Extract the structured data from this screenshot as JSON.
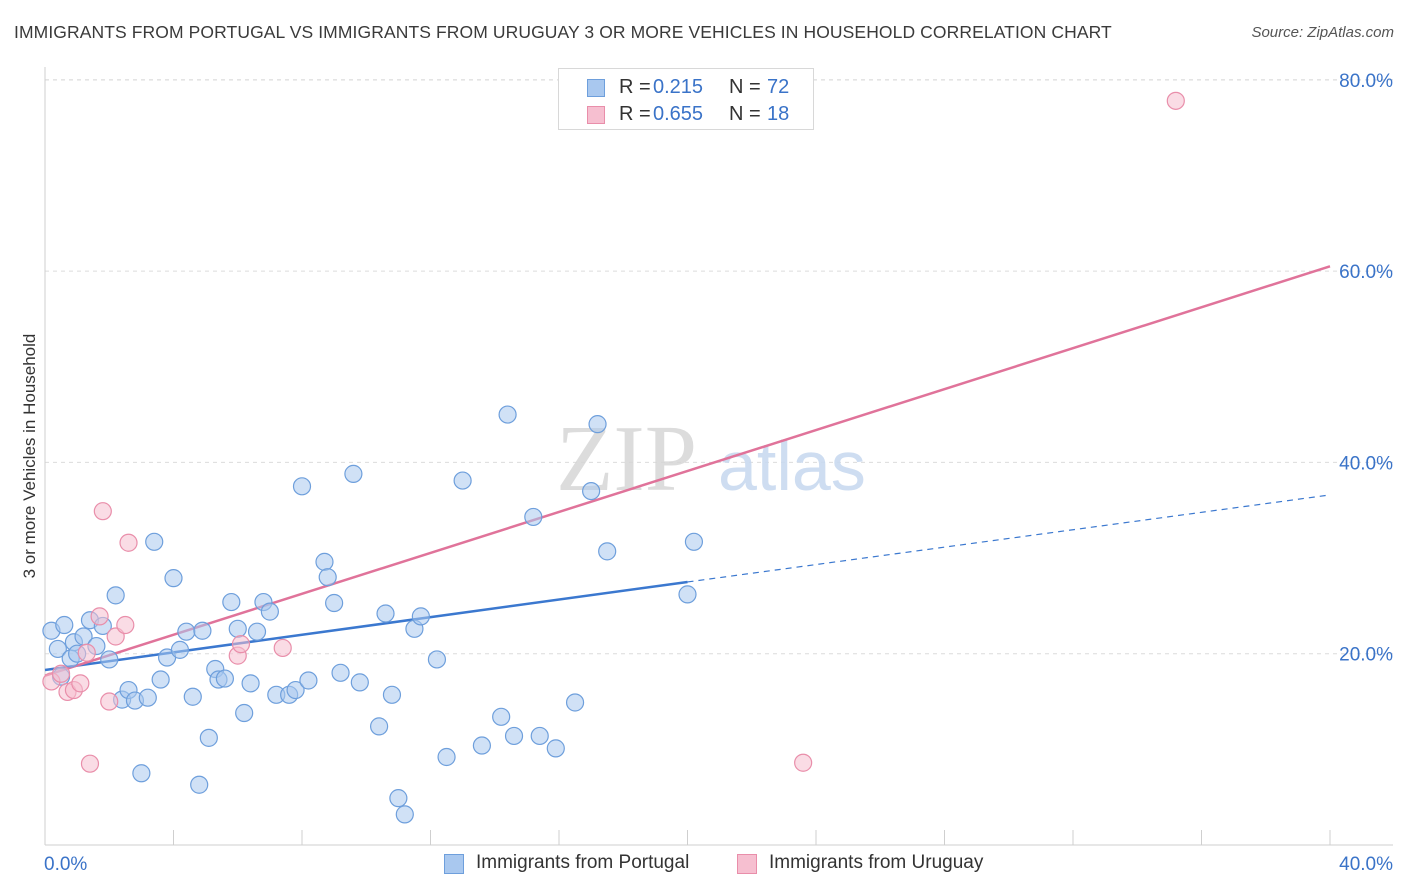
{
  "header": {
    "title": "IMMIGRANTS FROM PORTUGAL VS IMMIGRANTS FROM URUGUAY 3 OR MORE VEHICLES IN HOUSEHOLD CORRELATION CHART",
    "source": "Source: ZipAtlas.com"
  },
  "watermark": {
    "zip": "ZIP",
    "atlas": "atlas"
  },
  "legend_top": {
    "rows": [
      {
        "r_label": "R =",
        "r_value": "0.215",
        "n_label": "N =",
        "n_value": "72"
      },
      {
        "r_label": "R =",
        "r_value": "0.655",
        "n_label": "N =",
        "n_value": "18"
      }
    ]
  },
  "colors": {
    "portugal_fill": "#a9c8ef",
    "portugal_stroke": "#6e9fdc",
    "portugal_line": "#3b78cf",
    "uruguay_fill": "#f6bfd0",
    "uruguay_stroke": "#e98eaa",
    "uruguay_line": "#e0739a",
    "grid": "#dcdcdc",
    "tick_label": "#3a73c8"
  },
  "chart_data": {
    "type": "scatter",
    "title": "IMMIGRANTS FROM PORTUGAL VS IMMIGRANTS FROM URUGUAY 3 OR MORE VEHICLES IN HOUSEHOLD CORRELATION CHART",
    "xlabel": "",
    "ylabel": "3 or more Vehicles in Household",
    "xlim": [
      0,
      40
    ],
    "ylim": [
      0,
      80
    ],
    "x_tick_labels": [
      "0.0%",
      "40.0%"
    ],
    "y_ticks": [
      20,
      40,
      60,
      80
    ],
    "y_tick_labels": [
      "20.0%",
      "40.0%",
      "60.0%",
      "80.0%"
    ],
    "grid": true,
    "legend_position": "bottom",
    "series": [
      {
        "name": "Immigrants from Portugal",
        "R": 0.215,
        "N": 72,
        "trend": {
          "x_start": 0,
          "y_start": 18.3,
          "x_solid_end": 20,
          "y_solid_end": 27.5,
          "x_dash_end": 40,
          "y_dash_end": 36.6
        },
        "points": [
          [
            0.2,
            22.4
          ],
          [
            0.4,
            20.5
          ],
          [
            0.6,
            23.0
          ],
          [
            0.8,
            19.5
          ],
          [
            0.9,
            21.2
          ],
          [
            1.0,
            20.0
          ],
          [
            1.2,
            21.8
          ],
          [
            1.4,
            23.5
          ],
          [
            1.6,
            20.8
          ],
          [
            1.8,
            22.9
          ],
          [
            2.0,
            19.4
          ],
          [
            2.2,
            26.1
          ],
          [
            2.4,
            15.2
          ],
          [
            2.6,
            16.2
          ],
          [
            2.8,
            15.1
          ],
          [
            3.0,
            7.5
          ],
          [
            3.2,
            15.4
          ],
          [
            3.4,
            31.7
          ],
          [
            3.6,
            17.3
          ],
          [
            3.8,
            19.6
          ],
          [
            4.0,
            27.9
          ],
          [
            4.2,
            20.4
          ],
          [
            4.4,
            22.3
          ],
          [
            4.6,
            15.5
          ],
          [
            4.8,
            6.3
          ],
          [
            4.9,
            22.4
          ],
          [
            5.1,
            11.2
          ],
          [
            5.3,
            18.4
          ],
          [
            5.4,
            17.3
          ],
          [
            5.6,
            17.4
          ],
          [
            5.8,
            25.4
          ],
          [
            6.0,
            22.6
          ],
          [
            6.2,
            13.8
          ],
          [
            6.4,
            16.9
          ],
          [
            6.6,
            22.3
          ],
          [
            6.8,
            25.4
          ],
          [
            7.0,
            24.4
          ],
          [
            7.2,
            15.7
          ],
          [
            7.6,
            15.7
          ],
          [
            7.8,
            16.2
          ],
          [
            8.0,
            37.5
          ],
          [
            8.2,
            17.2
          ],
          [
            8.7,
            29.6
          ],
          [
            8.8,
            28.0
          ],
          [
            9.0,
            25.3
          ],
          [
            9.2,
            18.0
          ],
          [
            9.6,
            38.8
          ],
          [
            9.8,
            17.0
          ],
          [
            10.4,
            12.4
          ],
          [
            10.6,
            24.2
          ],
          [
            10.8,
            15.7
          ],
          [
            11.0,
            4.9
          ],
          [
            11.2,
            3.2
          ],
          [
            11.5,
            22.6
          ],
          [
            11.7,
            23.9
          ],
          [
            12.2,
            19.4
          ],
          [
            12.5,
            9.2
          ],
          [
            13.0,
            38.1
          ],
          [
            13.6,
            10.4
          ],
          [
            14.2,
            13.4
          ],
          [
            14.4,
            45.0
          ],
          [
            14.6,
            11.4
          ],
          [
            15.2,
            34.3
          ],
          [
            15.4,
            11.4
          ],
          [
            15.9,
            10.1
          ],
          [
            16.5,
            14.9
          ],
          [
            17.0,
            37.0
          ],
          [
            17.2,
            44.0
          ],
          [
            17.5,
            30.7
          ],
          [
            20.0,
            26.2
          ],
          [
            20.2,
            31.7
          ],
          [
            0.5,
            17.6
          ]
        ]
      },
      {
        "name": "Immigrants from Uruguay",
        "R": 0.655,
        "N": 18,
        "trend": {
          "x_start": 0,
          "y_start": 17.7,
          "x_end": 40,
          "y_end": 60.5
        },
        "points": [
          [
            0.2,
            17.1
          ],
          [
            0.5,
            17.9
          ],
          [
            0.7,
            16.0
          ],
          [
            0.9,
            16.2
          ],
          [
            1.1,
            16.9
          ],
          [
            1.3,
            20.1
          ],
          [
            1.4,
            8.5
          ],
          [
            1.7,
            23.9
          ],
          [
            1.8,
            34.9
          ],
          [
            2.0,
            15.0
          ],
          [
            2.2,
            21.8
          ],
          [
            2.5,
            23.0
          ],
          [
            2.6,
            31.6
          ],
          [
            6.0,
            19.8
          ],
          [
            6.1,
            21.0
          ],
          [
            7.4,
            20.6
          ],
          [
            23.6,
            8.6
          ],
          [
            35.2,
            77.8
          ]
        ]
      }
    ]
  },
  "legend_bottom": [
    {
      "label": "Immigrants from Portugal"
    },
    {
      "label": "Immigrants from Uruguay"
    }
  ]
}
